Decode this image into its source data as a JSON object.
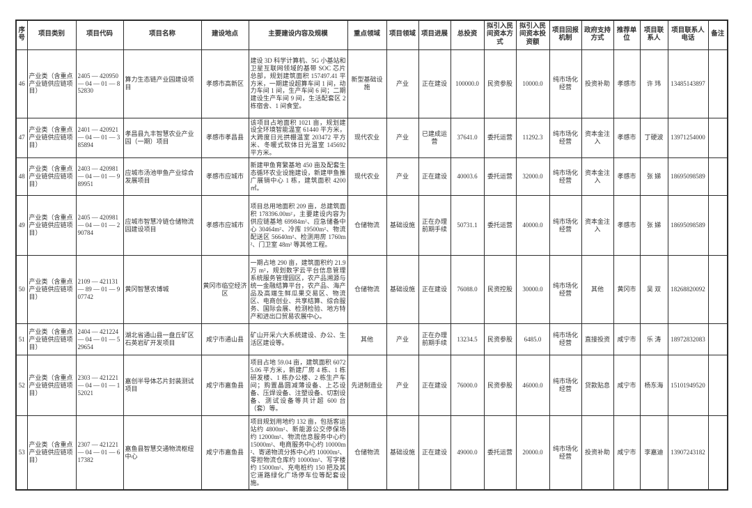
{
  "colors": {
    "border": "#2b2b2b",
    "text": "#333333",
    "background": "#ffffff"
  },
  "table": {
    "headers": [
      "序号",
      "项目类别",
      "项目代码",
      "项目名称",
      "建设地点",
      "主要建设内容及规模",
      "重点领域",
      "项目领域",
      "项目进展",
      "总投资",
      "拟引入民间资本方式",
      "拟引入民间资本投资额",
      "项目回报机制",
      "政府支持方式",
      "推荐单位",
      "项目联系人",
      "项目联系人电话",
      "备注"
    ],
    "rows": [
      {
        "cells": [
          "46",
          "产业类（含重点产业链供应链项目）",
          "2405 — 420950 — 04 — 01 — 852830",
          "算力生态链产业园建设项目",
          "孝感市高新区",
          "建设 3D 科学计算机、5G 小基站和卫星互联网领域的基带 SOC 芯片总部，规划建筑面积 157497.41 平方米，一期建设超算车间 1 间，动力车间 1 间，生产车间 6 间；二期建设生产车间 9 间，生活配套区 2 栋宿舍、1 间食堂。",
          "新型基础设施",
          "产业",
          "正在建设",
          "100000.0",
          "民资参股",
          "10000.0",
          "纯市场化经营",
          "投资补助",
          "孝感市",
          "许  玮",
          "13485143897",
          ""
        ]
      },
      {
        "cells": [
          "47",
          "产业类（含重点产业链供应链项目）",
          "2401 — 420921 — 04 — 01 — 385894",
          "孝昌县九丰智慧农业产业园（一期）项目",
          "孝感市孝昌县",
          "该项目占地面积 1021 亩，规划建设全环境智能温室 61440 平方米，大跨度日光拱棚温室 203472 平方米、冬暖式软体日光温室 145692 平方米。",
          "现代农业",
          "产业",
          "已建成运营",
          "37641.0",
          "委托运营",
          "11292.3",
          "纯市场化经营",
          "资本金注入",
          "孝感市",
          "丁硬波",
          "13971254000",
          ""
        ]
      },
      {
        "cells": [
          "48",
          "产业类（含重点产业链供应链项目）",
          "2403 — 420981 — 04 — 01 — 989951",
          "应城市汤池甲鱼产业综合发展项目",
          "孝感市应城市",
          "新建甲鱼育繁基地 450 亩及配套生态循环农业设施建设，新建甲鱼推广展销中心 1 栋，建筑面积 4200㎡。",
          "现代农业",
          "产业",
          "正在建设",
          "40003.6",
          "委托运营",
          "32000.0",
          "纯市场化经营",
          "资本金注入",
          "孝感市",
          "张  娣",
          "18695098589",
          ""
        ]
      },
      {
        "cells": [
          "49",
          "产业类（含重点产业链供应链项目）",
          "2405 — 420981 — 04 — 01 — 290784",
          "应城市智慧冷链仓储物流园建设项目",
          "孝感市应城市",
          "项目总用地面积 209 亩，总建筑面积 178396.00m²，主要建设内容为供应链基地 69984m²、应急储备中心 30464m²、冷库 19500m²、物流配送区 56640m²、检测用房 1760m²、门卫室 48m² 等其他工程。",
          "仓储物流",
          "基础设施",
          "正在办理前期手续",
          "50731.1",
          "委托运营",
          "40000.0",
          "纯市场化经营",
          "资本金注入",
          "孝感市",
          "张  娣",
          "18695098589",
          ""
        ]
      },
      {
        "cells": [
          "50",
          "产业类（含重点产业链供应链项目）",
          "2109 — 421131 — 89 — 01 — 907742",
          "黄冈智慧农博城",
          "黄冈市临空经济区",
          "一期占地 290 亩，建筑面积约 21.9万 m²，规划数字云平台信息管理系统服务管理园区，农产品溯源与统一金融结算平台，农产品、海产品及高端生鲜瓜果交易区、物流区、电商创业、共享结算、综合服务、国际会展、检测检验、地方特产和进出口贸易农展中心。",
          "仓储物流",
          "基础设施",
          "正在建设",
          "76088.0",
          "民资控股",
          "30000.0",
          "纯市场化经营",
          "其他",
          "黄冈市",
          "吴  双",
          "18268820092",
          ""
        ]
      },
      {
        "cells": [
          "51",
          "产业类（含重点产业链供应链项目）",
          "2404 — 421224 — 04 — 01 — 529654",
          "湖北省通山县一盘丘矿区石英岩矿开发项目",
          "咸宁市通山县",
          "矿山开采六大系统建设、办公、生活区建设等。",
          "其他",
          "产业",
          "正在办理前期手续",
          "13234.5",
          "民资参股",
          "6485.0",
          "纯市场化经营",
          "直接投资",
          "咸宁市",
          "乐  涛",
          "18972832083",
          ""
        ]
      },
      {
        "cells": [
          "52",
          "产业类（含重点产业链供应链项目）",
          "2303 — 421221 — 04 — 01 — 152021",
          "嘉创半导体芯片封装测试项目",
          "咸宁市嘉鱼县",
          "项目占地 59.04 亩，建筑面积 60725.06 平方米，新建厂房 4 栋、1 栋研发楼、1 栋办公楼、2 栋生产车间；购置晶圆减薄设备、上芯设备、压焊设备、注塑设备、切割设备、测试设备等共计超 600 台（套）等。",
          "先进制造业",
          "产业",
          "正在建设",
          "76000.0",
          "民资参股",
          "46000.0",
          "纯市场化经营",
          "贷款贴息",
          "咸宁市",
          "杨东海",
          "15101949520",
          ""
        ]
      },
      {
        "cells": [
          "53",
          "产业类（含重点产业链供应链项目）",
          "2307 — 421221 — 04 — 01 — 617382",
          "嘉鱼县智慧交通物流枢纽中心",
          "咸宁市嘉鱼县",
          "项目规划用地约 132 亩，包括客运站约 4800m²、新能源公交停保场约 12000m²、物流信息服务中心约 15000m²、电商服务中心约 10000m²、寄递物流分拣中心约 10000m²、零担物流仓库约 10000m²、写字楼约 15000m²、充电桩约 150 把及其它道路绿化广场停车位等配套设施。",
          "仓储物流",
          "基础设施",
          "正在建设",
          "49000.0",
          "委托运营",
          "20000.0",
          "纯市场化经营",
          "投资补助",
          "咸宁市",
          "李嘉迪",
          "13907243182",
          ""
        ]
      }
    ]
  }
}
